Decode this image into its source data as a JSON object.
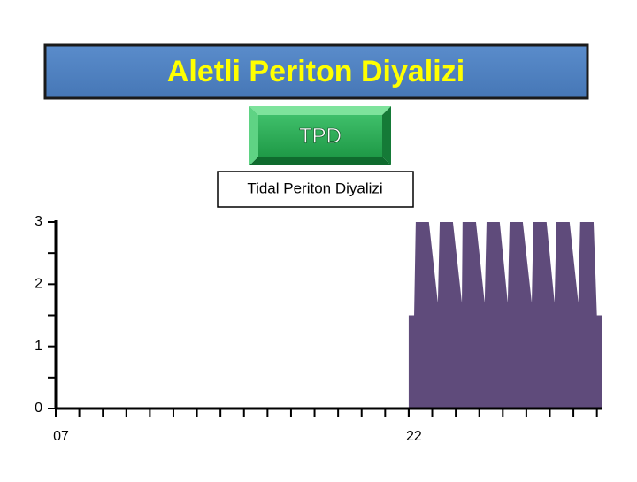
{
  "chart_data": {
    "type": "area",
    "title": "Aletli Periton Diyalizi",
    "badge": "TPD",
    "subtitle": "Tidal Periton Diyalizi",
    "x": [
      22,
      22,
      22.23,
      22.3,
      22.86,
      23.24,
      23.32,
      23.88,
      24.26,
      24.29,
      24.86,
      25.23,
      25.31,
      25.87,
      26.21,
      26.29,
      26.85,
      27.23,
      27.3,
      27.86,
      28.2,
      28.28,
      28.84,
      29.21,
      29.29,
      29.86,
      30.0,
      30.2,
      30.2
    ],
    "values": [
      0,
      1.5,
      1.5,
      3,
      3,
      1.7,
      3,
      3,
      1.7,
      3,
      3,
      1.7,
      3,
      3,
      1.7,
      3,
      3,
      1.7,
      3,
      3,
      1.7,
      3,
      3,
      1.7,
      3,
      3,
      1.5,
      1.5,
      0
    ],
    "color": "#5f4b7b",
    "xlim": [
      7,
      30.2
    ],
    "ylim": [
      0,
      3
    ],
    "xticks": [
      {
        "value": 7,
        "label": "07"
      },
      {
        "value": 22,
        "label": "22"
      }
    ],
    "xminorticks": [
      7,
      8,
      9,
      10,
      11,
      12,
      13,
      14,
      15,
      16,
      17,
      18,
      19,
      20,
      21,
      22,
      23,
      24,
      25,
      26,
      27,
      28,
      29,
      30
    ],
    "yticks": [
      0,
      1,
      2,
      3
    ],
    "yminorticks": [
      0.5,
      1.5,
      2.5
    ]
  }
}
